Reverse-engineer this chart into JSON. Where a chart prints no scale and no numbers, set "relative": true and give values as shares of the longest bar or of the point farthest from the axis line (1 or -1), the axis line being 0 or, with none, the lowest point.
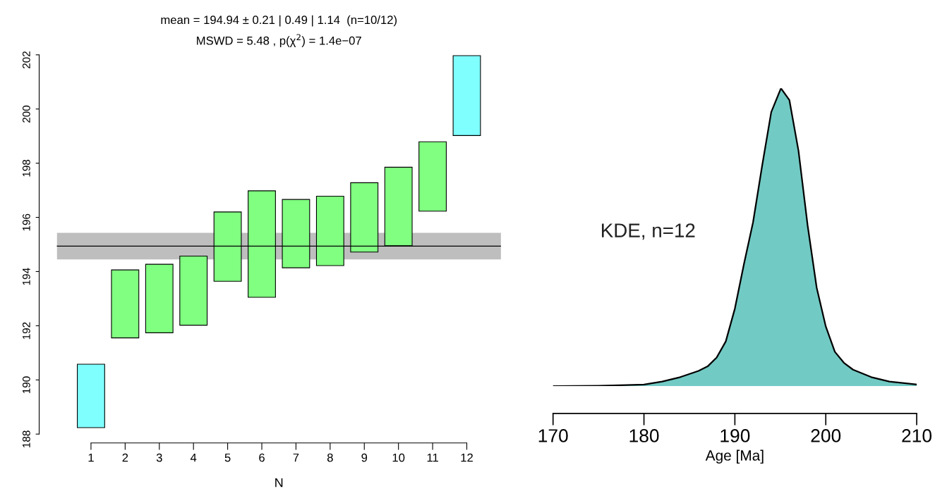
{
  "chart_data": [
    {
      "type": "bar",
      "title": "mean = 194.94 ± 0.21 | 0.49 | 1.14  (n=10/12)",
      "subtitle": "MSWD = 5.48 , p(χ$^{2}$) = 1.4e−07",
      "xlabel": "N",
      "categories": [
        "1",
        "2",
        "3",
        "4",
        "5",
        "6",
        "7",
        "8",
        "9",
        "10",
        "11",
        "12"
      ],
      "base": [
        188.24,
        191.55,
        191.74,
        192.02,
        193.64,
        193.05,
        194.14,
        194.22,
        194.72,
        194.95,
        196.23,
        199.02
      ],
      "values": [
        2.34,
        2.51,
        2.53,
        2.55,
        2.56,
        3.93,
        2.52,
        2.56,
        2.56,
        2.9,
        2.56,
        2.95
      ],
      "colors": [
        "#80ffff",
        "#80ff80",
        "#80ff80",
        "#80ff80",
        "#80ff80",
        "#80ff80",
        "#80ff80",
        "#80ff80",
        "#80ff80",
        "#80ff80",
        "#80ff80",
        "#80ffff"
      ],
      "ylim": [
        188,
        202
      ],
      "yticks": [
        188,
        190,
        192,
        194,
        196,
        198,
        200,
        202
      ],
      "ref_lines": [
        {
          "axis": "y",
          "value": 194.94,
          "color": "#000000"
        }
      ],
      "bands": [
        {
          "axis": "y",
          "from": 194.45,
          "to": 195.43,
          "color": "#bebebe"
        }
      ]
    },
    {
      "type": "area",
      "relative": true,
      "xlabel": "Age [Ma]",
      "color": "#72cac4",
      "x": [
        170,
        175,
        178,
        180,
        182,
        184,
        186,
        187,
        188,
        189,
        190,
        191,
        192,
        193,
        194,
        195.07,
        196,
        197,
        198,
        199,
        200,
        201,
        202,
        203,
        205,
        207,
        210
      ],
      "values": [
        0,
        0.001,
        0.003,
        0.005,
        0.015,
        0.03,
        0.051,
        0.066,
        0.096,
        0.15,
        0.26,
        0.41,
        0.55,
        0.74,
        0.92,
        1.0,
        0.96,
        0.79,
        0.54,
        0.33,
        0.2,
        0.115,
        0.078,
        0.055,
        0.03,
        0.015,
        0.005
      ],
      "xlim": [
        170,
        210
      ],
      "xticks": [
        170,
        180,
        190,
        200,
        210
      ],
      "annotations": [
        "KDE, n=12"
      ]
    }
  ]
}
